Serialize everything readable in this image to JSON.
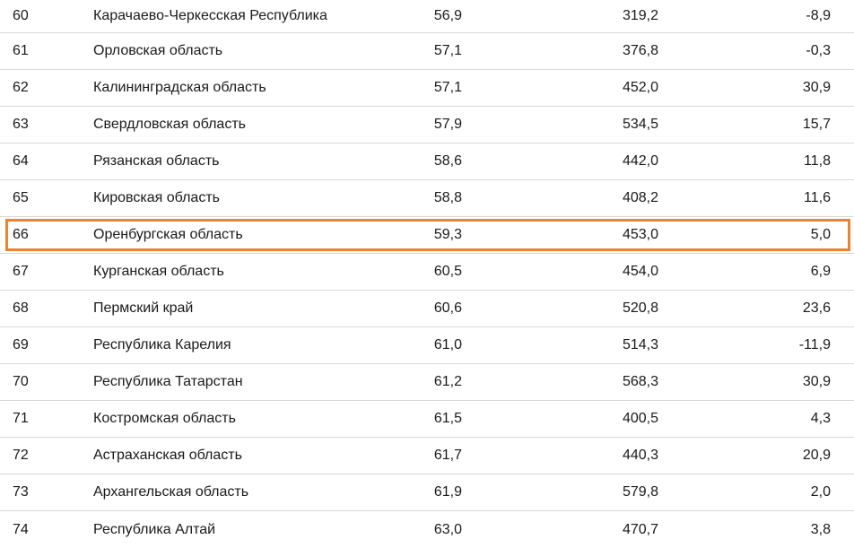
{
  "accent_color": "#ee8230",
  "rows": [
    {
      "rank": "60",
      "region": "Карачаево-Черкесская Республика",
      "v1": "56,9",
      "v2": "319,2",
      "v3": "-8,9"
    },
    {
      "rank": "61",
      "region": "Орловская область",
      "v1": "57,1",
      "v2": "376,8",
      "v3": "-0,3"
    },
    {
      "rank": "62",
      "region": "Калининградская область",
      "v1": "57,1",
      "v2": "452,0",
      "v3": "30,9"
    },
    {
      "rank": "63",
      "region": "Свердловская область",
      "v1": "57,9",
      "v2": "534,5",
      "v3": "15,7"
    },
    {
      "rank": "64",
      "region": "Рязанская область",
      "v1": "58,6",
      "v2": "442,0",
      "v3": "11,8"
    },
    {
      "rank": "65",
      "region": "Кировская область",
      "v1": "58,8",
      "v2": "408,2",
      "v3": "11,6"
    },
    {
      "rank": "66",
      "region": "Оренбургская область",
      "v1": "59,3",
      "v2": "453,0",
      "v3": "5,0",
      "highlighted": true
    },
    {
      "rank": "67",
      "region": "Курганская область",
      "v1": "60,5",
      "v2": "454,0",
      "v3": "6,9"
    },
    {
      "rank": "68",
      "region": "Пермский край",
      "v1": "60,6",
      "v2": "520,8",
      "v3": "23,6"
    },
    {
      "rank": "69",
      "region": "Республика Карелия",
      "v1": "61,0",
      "v2": "514,3",
      "v3": "-11,9"
    },
    {
      "rank": "70",
      "region": "Республика Татарстан",
      "v1": "61,2",
      "v2": "568,3",
      "v3": "30,9"
    },
    {
      "rank": "71",
      "region": "Костромская область",
      "v1": "61,5",
      "v2": "400,5",
      "v3": "4,3"
    },
    {
      "rank": "72",
      "region": "Астраханская область",
      "v1": "61,7",
      "v2": "440,3",
      "v3": "20,9"
    },
    {
      "rank": "73",
      "region": "Архангельская область",
      "v1": "61,9",
      "v2": "579,8",
      "v3": "2,0"
    },
    {
      "rank": "74",
      "region": "Республика Алтай",
      "v1": "63,0",
      "v2": "470,7",
      "v3": "3,8"
    }
  ]
}
